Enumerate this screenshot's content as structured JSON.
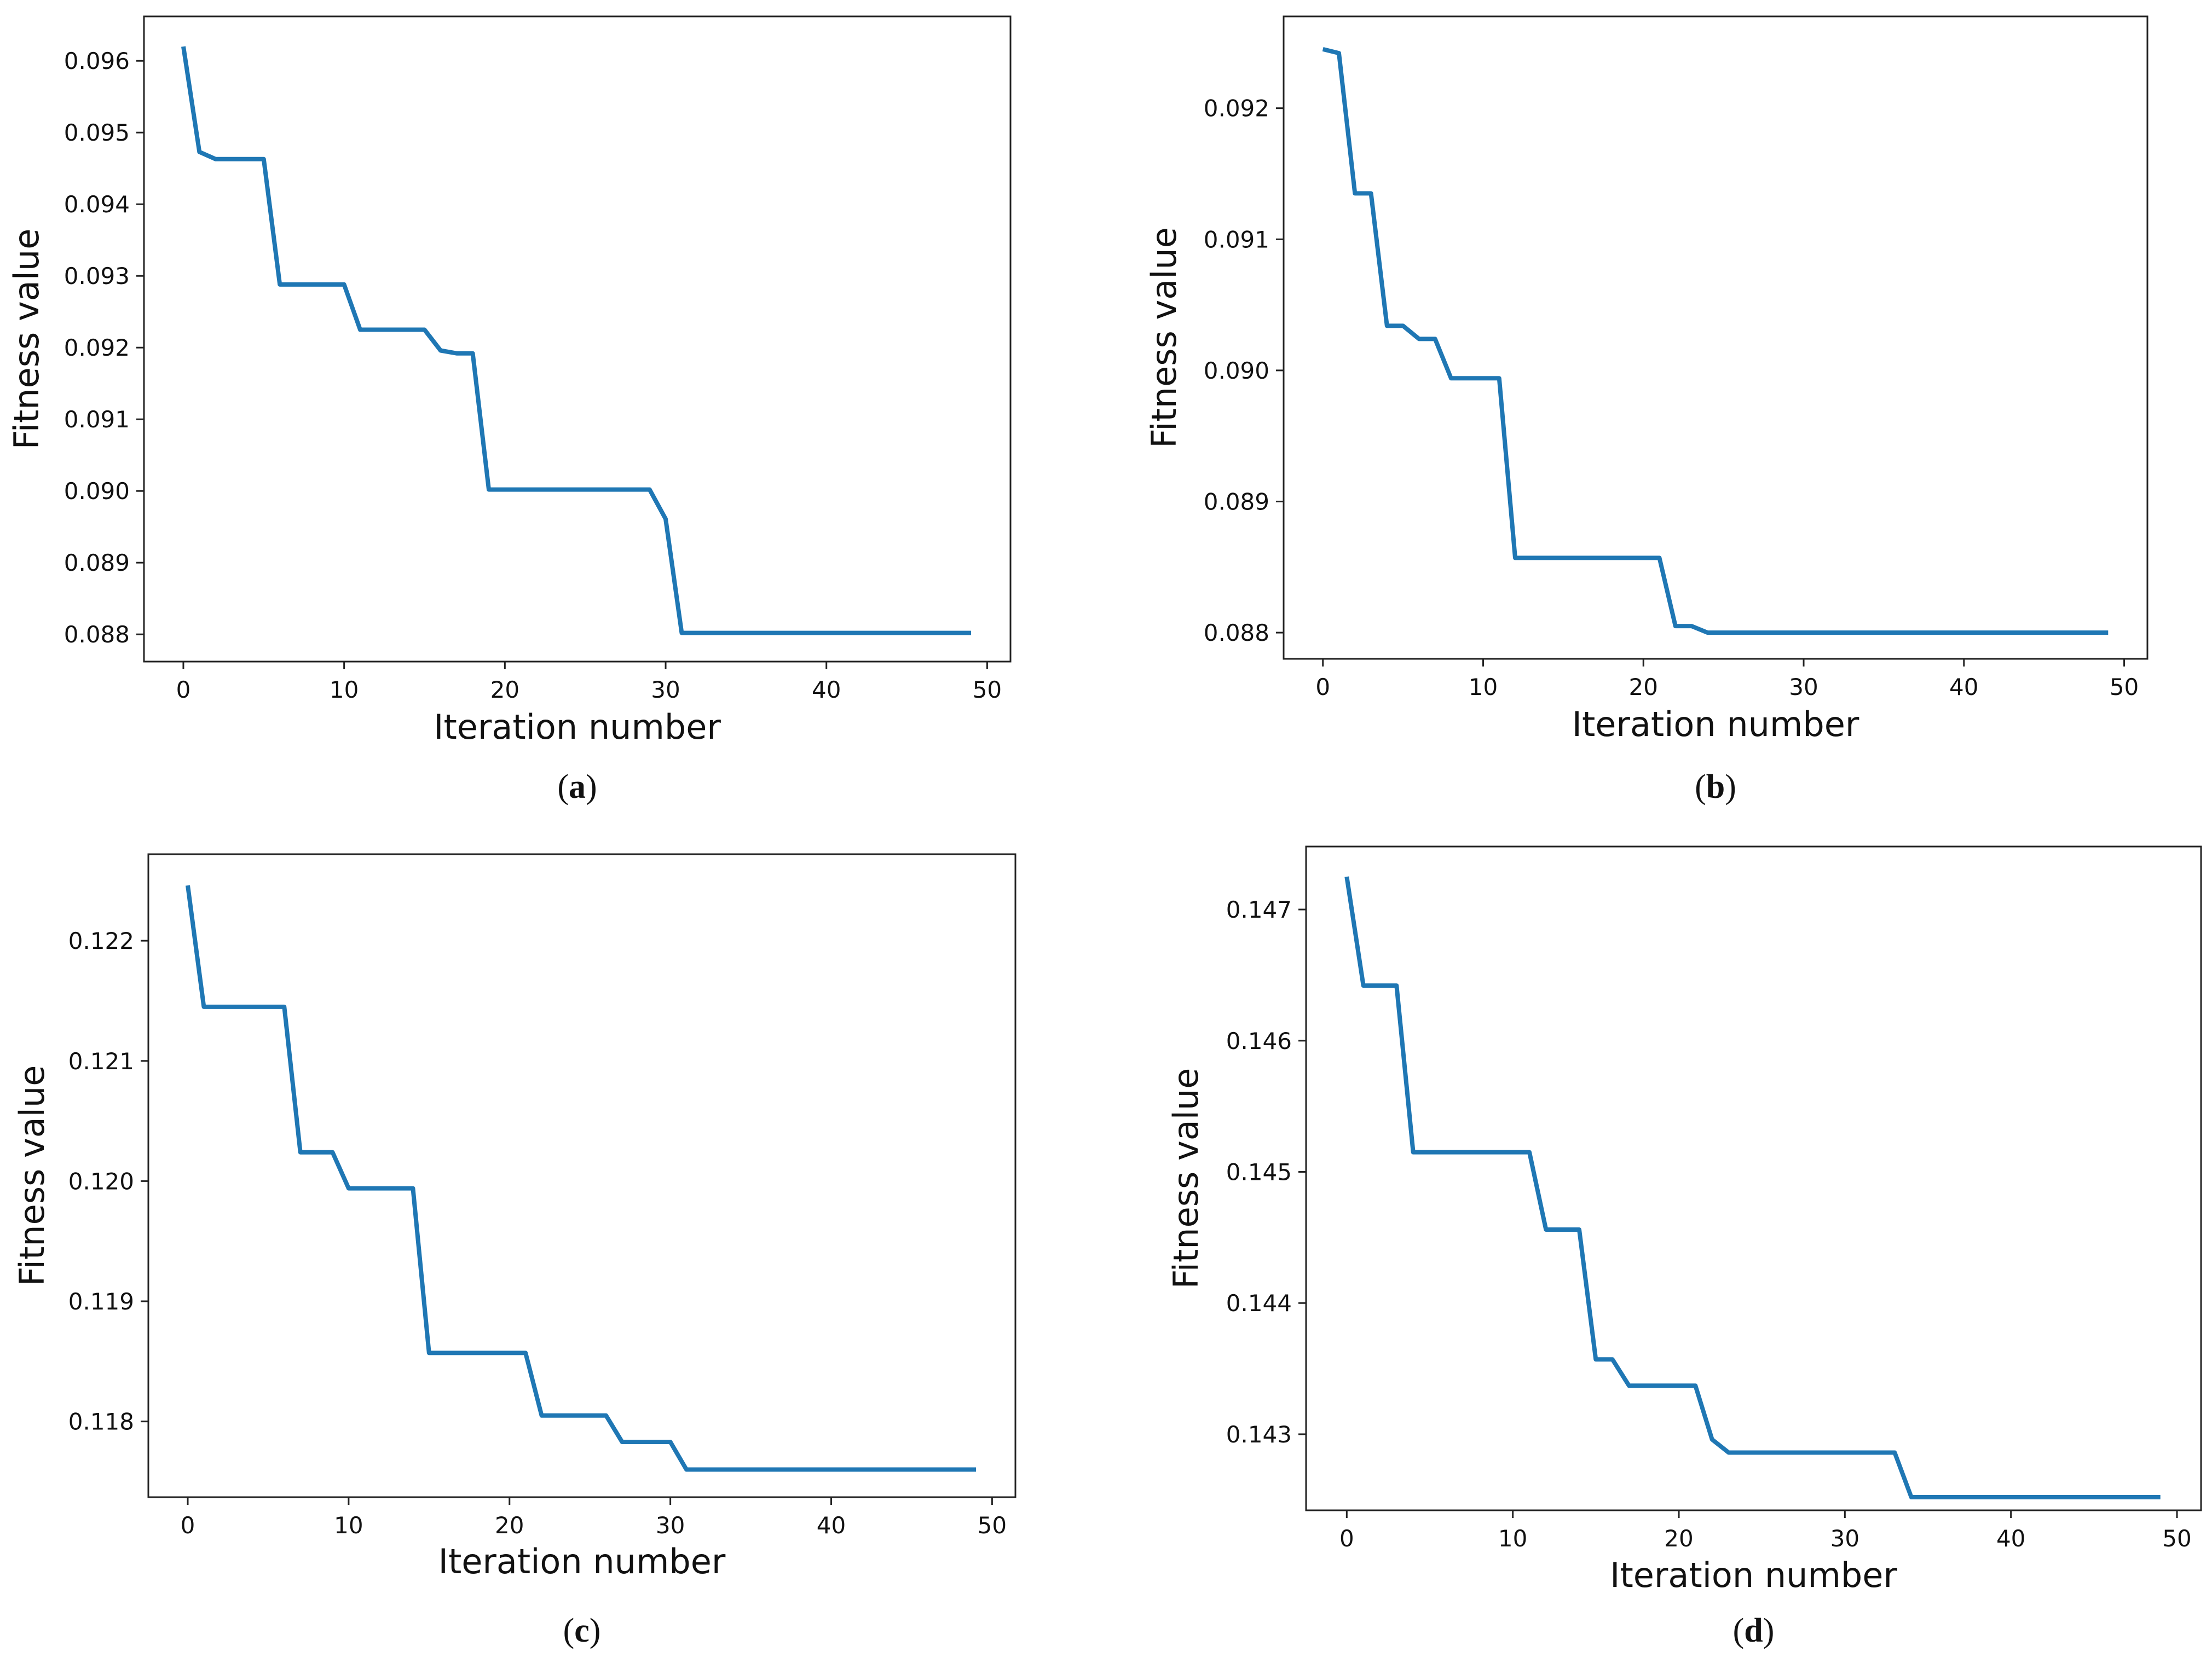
{
  "figure": {
    "line_color": "#1f77b4",
    "axis_color": "#222222"
  },
  "chart_data": [
    {
      "id": "a",
      "type": "line",
      "caption_letter": "a",
      "caption_open": "(",
      "caption_close": ")",
      "xlabel": "Iteration number",
      "ylabel": "Fitness value",
      "xlim": [
        -2.45,
        51.45
      ],
      "ylim": [
        0.08762,
        0.09662
      ],
      "xticks": [
        0,
        10,
        20,
        30,
        40,
        50
      ],
      "yticks": [
        0.088,
        0.089,
        0.09,
        0.091,
        0.092,
        0.093,
        0.094,
        0.095,
        0.096
      ],
      "ytick_labels": [
        "0.088",
        "0.089",
        "0.090",
        "0.091",
        "0.092",
        "0.093",
        "0.094",
        "0.095",
        "0.096"
      ],
      "series": [
        {
          "name": "Fitness value",
          "x": [
            0,
            1,
            2,
            3,
            4,
            5,
            6,
            7,
            8,
            9,
            10,
            11,
            12,
            13,
            14,
            15,
            16,
            17,
            18,
            19,
            20,
            21,
            22,
            23,
            24,
            25,
            26,
            27,
            28,
            29,
            30,
            31,
            32,
            33,
            34,
            35,
            36,
            37,
            38,
            39,
            40,
            41,
            42,
            43,
            44,
            45,
            46,
            47,
            48,
            49
          ],
          "y": [
            0.0962,
            0.09473,
            0.09463,
            0.09463,
            0.09463,
            0.09463,
            0.09288,
            0.09288,
            0.09288,
            0.09288,
            0.09288,
            0.09225,
            0.09225,
            0.09225,
            0.09225,
            0.09225,
            0.09196,
            0.09192,
            0.09192,
            0.09002,
            0.09002,
            0.09002,
            0.09002,
            0.09002,
            0.09002,
            0.09002,
            0.09002,
            0.09002,
            0.09002,
            0.09002,
            0.08961,
            0.08802,
            0.08802,
            0.08802,
            0.08802,
            0.08802,
            0.08802,
            0.08802,
            0.08802,
            0.08802,
            0.08802,
            0.08802,
            0.08802,
            0.08802,
            0.08802,
            0.08802,
            0.08802,
            0.08802,
            0.08802,
            0.08802
          ]
        }
      ]
    },
    {
      "id": "b",
      "type": "line",
      "caption_letter": "b",
      "caption_open": "(",
      "caption_close": ")",
      "xlabel": "Iteration number",
      "ylabel": "Fitness value",
      "xlim": [
        -2.45,
        51.45
      ],
      "ylim": [
        0.0878,
        0.0927
      ],
      "xticks": [
        0,
        10,
        20,
        30,
        40,
        50
      ],
      "yticks": [
        0.088,
        0.089,
        0.09,
        0.091,
        0.092
      ],
      "ytick_labels": [
        "0.088",
        "0.089",
        "0.090",
        "0.091",
        "0.092"
      ],
      "series": [
        {
          "name": "Fitness value",
          "x": [
            0,
            1,
            2,
            3,
            4,
            5,
            6,
            7,
            8,
            9,
            10,
            11,
            12,
            13,
            14,
            15,
            16,
            17,
            18,
            19,
            20,
            21,
            22,
            23,
            24,
            25,
            26,
            27,
            28,
            29,
            30,
            31,
            32,
            33,
            34,
            35,
            36,
            37,
            38,
            39,
            40,
            41,
            42,
            43,
            44,
            45,
            46,
            47,
            48,
            49
          ],
          "y": [
            0.09245,
            0.09242,
            0.09135,
            0.09135,
            0.09034,
            0.09034,
            0.09024,
            0.09024,
            0.08994,
            0.08994,
            0.08994,
            0.08994,
            0.08857,
            0.08857,
            0.08857,
            0.08857,
            0.08857,
            0.08857,
            0.08857,
            0.08857,
            0.08857,
            0.08857,
            0.08805,
            0.08805,
            0.088,
            0.088,
            0.088,
            0.088,
            0.088,
            0.088,
            0.088,
            0.088,
            0.088,
            0.088,
            0.088,
            0.088,
            0.088,
            0.088,
            0.088,
            0.088,
            0.088,
            0.088,
            0.088,
            0.088,
            0.088,
            0.088,
            0.088,
            0.088,
            0.088,
            0.088
          ]
        }
      ]
    },
    {
      "id": "c",
      "type": "line",
      "caption_letter": "c",
      "caption_open": "(",
      "caption_close": ")",
      "xlabel": "Iteration number",
      "ylabel": "Fitness value",
      "xlim": [
        -2.45,
        51.45
      ],
      "ylim": [
        0.11737,
        0.12272
      ],
      "xticks": [
        0,
        10,
        20,
        30,
        40,
        50
      ],
      "yticks": [
        0.118,
        0.119,
        0.12,
        0.121,
        0.122
      ],
      "ytick_labels": [
        "0.118",
        "0.119",
        "0.120",
        "0.121",
        "0.122"
      ],
      "series": [
        {
          "name": "Fitness value",
          "x": [
            0,
            1,
            2,
            3,
            4,
            5,
            6,
            7,
            8,
            9,
            10,
            11,
            12,
            13,
            14,
            15,
            16,
            17,
            18,
            19,
            20,
            21,
            22,
            23,
            24,
            25,
            26,
            27,
            28,
            29,
            30,
            31,
            32,
            33,
            34,
            35,
            36,
            37,
            38,
            39,
            40,
            41,
            42,
            43,
            44,
            45,
            46,
            47,
            48,
            49
          ],
          "y": [
            0.12246,
            0.12145,
            0.12145,
            0.12145,
            0.12145,
            0.12145,
            0.12145,
            0.12024,
            0.12024,
            0.12024,
            0.11994,
            0.11994,
            0.11994,
            0.11994,
            0.11994,
            0.11857,
            0.11857,
            0.11857,
            0.11857,
            0.11857,
            0.11857,
            0.11857,
            0.11805,
            0.11805,
            0.11805,
            0.11805,
            0.11805,
            0.11783,
            0.11783,
            0.11783,
            0.11783,
            0.1176,
            0.1176,
            0.1176,
            0.1176,
            0.1176,
            0.1176,
            0.1176,
            0.1176,
            0.1176,
            0.1176,
            0.1176,
            0.1176,
            0.1176,
            0.1176,
            0.1176,
            0.1176,
            0.1176,
            0.1176,
            0.1176
          ]
        }
      ]
    },
    {
      "id": "d",
      "type": "line",
      "caption_letter": "d",
      "caption_open": "(",
      "caption_close": ")",
      "xlabel": "Iteration number",
      "ylabel": "Fitness value",
      "xlim": [
        -2.45,
        51.45
      ],
      "ylim": [
        0.14242,
        0.14748
      ],
      "xticks": [
        0,
        10,
        20,
        30,
        40,
        50
      ],
      "yticks": [
        0.143,
        0.144,
        0.145,
        0.146,
        0.147
      ],
      "ytick_labels": [
        "0.143",
        "0.144",
        "0.145",
        "0.146",
        "0.147"
      ],
      "series": [
        {
          "name": "Fitness value",
          "x": [
            0,
            1,
            2,
            3,
            4,
            5,
            6,
            7,
            8,
            9,
            10,
            11,
            12,
            13,
            14,
            15,
            16,
            17,
            18,
            19,
            20,
            21,
            22,
            23,
            24,
            25,
            26,
            27,
            28,
            29,
            30,
            31,
            32,
            33,
            34,
            35,
            36,
            37,
            38,
            39,
            40,
            41,
            42,
            43,
            44,
            45,
            46,
            47,
            48,
            49
          ],
          "y": [
            0.14725,
            0.14642,
            0.14642,
            0.14642,
            0.14515,
            0.14515,
            0.14515,
            0.14515,
            0.14515,
            0.14515,
            0.14515,
            0.14515,
            0.14456,
            0.14456,
            0.14456,
            0.14357,
            0.14357,
            0.14337,
            0.14337,
            0.14337,
            0.14337,
            0.14337,
            0.14296,
            0.14286,
            0.14286,
            0.14286,
            0.14286,
            0.14286,
            0.14286,
            0.14286,
            0.14286,
            0.14286,
            0.14286,
            0.14286,
            0.14252,
            0.14252,
            0.14252,
            0.14252,
            0.14252,
            0.14252,
            0.14252,
            0.14252,
            0.14252,
            0.14252,
            0.14252,
            0.14252,
            0.14252,
            0.14252,
            0.14252,
            0.14252
          ]
        }
      ]
    }
  ]
}
